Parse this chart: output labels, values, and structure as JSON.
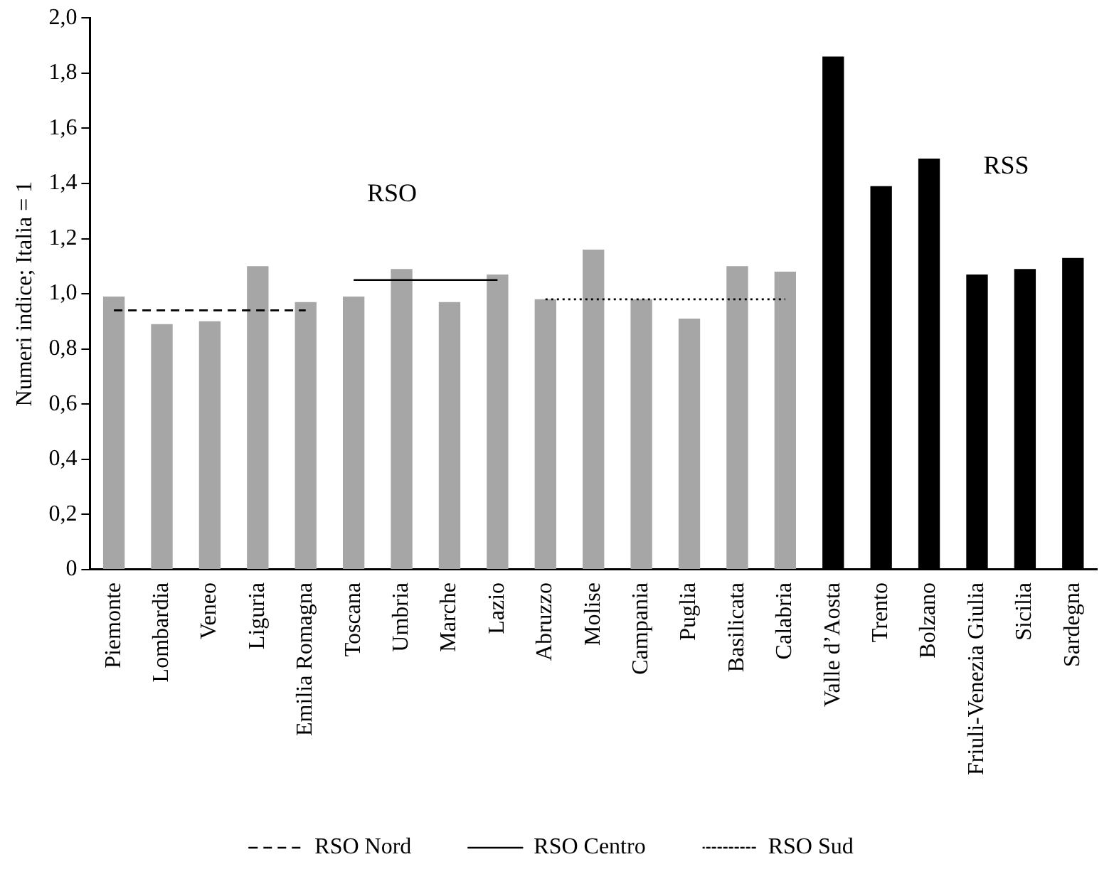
{
  "chart_data": {
    "type": "bar",
    "ylabel": "Numeri indice; Italia = 1",
    "categories": [
      "Piemonte",
      "Lombardia",
      "Veneo",
      "Liguria",
      "Emilia Romagna",
      "Toscana",
      "Umbria",
      "Marche",
      "Lazio",
      "Abruzzo",
      "Molise",
      "Campania",
      "Puglia",
      "Basilicata",
      "Calabria",
      "Valle d’Aosta",
      "Trento",
      "Bolzano",
      "Friuli-Venezia Giulia",
      "Sicilia",
      "Sardegna"
    ],
    "series": [
      {
        "colors": [
          "#a6a6a6",
          "#a6a6a6",
          "#a6a6a6",
          "#a6a6a6",
          "#a6a6a6",
          "#a6a6a6",
          "#a6a6a6",
          "#a6a6a6",
          "#a6a6a6",
          "#a6a6a6",
          "#a6a6a6",
          "#a6a6a6",
          "#a6a6a6",
          "#a6a6a6",
          "#a6a6a6",
          "#000000",
          "#000000",
          "#000000",
          "#000000",
          "#000000",
          "#000000"
        ],
        "values": [
          0.99,
          0.89,
          0.9,
          1.1,
          0.97,
          0.99,
          1.09,
          0.97,
          1.07,
          0.98,
          1.16,
          0.98,
          0.91,
          1.1,
          1.08,
          1.86,
          1.39,
          1.49,
          1.07,
          1.09,
          1.13
        ]
      },
      {
        "type": "line",
        "name": "RSO Nord",
        "color": "#000000",
        "line_style": "dashed",
        "values": [
          0.94,
          0.94,
          0.94,
          0.94,
          0.94,
          null,
          null,
          null,
          null,
          null,
          null,
          null,
          null,
          null,
          null,
          null,
          null,
          null,
          null,
          null,
          null
        ]
      },
      {
        "type": "line",
        "name": "RSO Centro",
        "color": "#000000",
        "line_style": "solid",
        "values": [
          null,
          null,
          null,
          null,
          null,
          1.05,
          1.05,
          1.05,
          1.05,
          null,
          null,
          null,
          null,
          null,
          null,
          null,
          null,
          null,
          null,
          null,
          null
        ]
      },
      {
        "type": "line",
        "name": "RSO Sud",
        "color": "#000000",
        "line_style": "dotted",
        "values": [
          null,
          null,
          null,
          null,
          null,
          null,
          null,
          null,
          null,
          0.98,
          0.98,
          0.98,
          0.98,
          0.98,
          0.98,
          null,
          null,
          null,
          null,
          null,
          null
        ]
      }
    ],
    "ylim": [
      0,
      2
    ],
    "yticks": [
      {
        "value": 0,
        "label": "0"
      },
      {
        "value": 0.2,
        "label": "0,2"
      },
      {
        "value": 0.4,
        "label": "0,4"
      },
      {
        "value": 0.6,
        "label": "0,6"
      },
      {
        "value": 0.8,
        "label": "0,8"
      },
      {
        "value": 1,
        "label": "1,0"
      },
      {
        "value": 1.2,
        "label": "1,2"
      },
      {
        "value": 1.4,
        "label": "1,4"
      },
      {
        "value": 1.6,
        "label": "1,6"
      },
      {
        "value": 1.8,
        "label": "1,8"
      },
      {
        "value": 2,
        "label": "2,0"
      }
    ],
    "annotations": [
      "RSO",
      "RSS"
    ],
    "grid": false,
    "legend": "bottom",
    "marker": "none"
  }
}
